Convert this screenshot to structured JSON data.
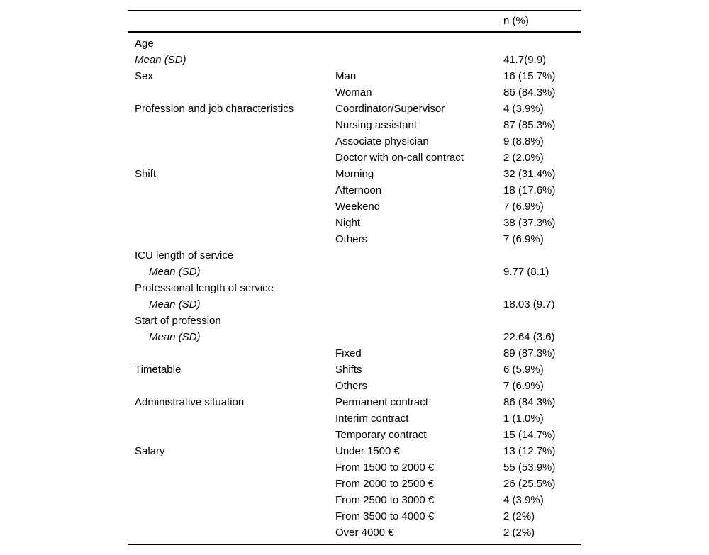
{
  "page": {
    "background": "#ffffff",
    "text_color": "#000000",
    "rule_color": "#000000"
  },
  "table": {
    "header": {
      "category_column": "",
      "subcategory_column": "",
      "value_column": "n (%)"
    },
    "rows": [
      {
        "category": "Age",
        "subcategory": "",
        "value": "",
        "italic": false,
        "indent": false
      },
      {
        "category": "Mean (SD)",
        "subcategory": "",
        "value": "41.7(9.9)",
        "italic": true,
        "indent": false
      },
      {
        "category": "Sex",
        "subcategory": "Man",
        "value": "16 (15.7%)",
        "italic": false,
        "indent": false
      },
      {
        "category": "",
        "subcategory": "Woman",
        "value": "86 (84.3%)",
        "italic": false,
        "indent": false
      },
      {
        "category": "Profession and job characteristics",
        "subcategory": "Coordinator/Supervisor",
        "value": "4 (3.9%)",
        "italic": false,
        "indent": false
      },
      {
        "category": "",
        "subcategory": "Nursing assistant",
        "value": "87 (85.3%)",
        "italic": false,
        "indent": false
      },
      {
        "category": "",
        "subcategory": "Associate physician",
        "value": "9 (8.8%)",
        "italic": false,
        "indent": false
      },
      {
        "category": "",
        "subcategory": "Doctor with on-call contract",
        "value": "2 (2.0%)",
        "italic": false,
        "indent": false
      },
      {
        "category": "Shift",
        "subcategory": "Morning",
        "value": "32 (31.4%)",
        "italic": false,
        "indent": false
      },
      {
        "category": "",
        "subcategory": "Afternoon",
        "value": "18 (17.6%)",
        "italic": false,
        "indent": false
      },
      {
        "category": "",
        "subcategory": "Weekend",
        "value": "7 (6.9%)",
        "italic": false,
        "indent": false
      },
      {
        "category": "",
        "subcategory": "Night",
        "value": "38 (37.3%)",
        "italic": false,
        "indent": false
      },
      {
        "category": "",
        "subcategory": "Others",
        "value": "7 (6.9%)",
        "italic": false,
        "indent": false
      },
      {
        "category": "ICU length of service",
        "subcategory": "",
        "value": "",
        "italic": false,
        "indent": false
      },
      {
        "category": "Mean (SD)",
        "subcategory": "",
        "value": "9.77 (8.1)",
        "italic": true,
        "indent": true
      },
      {
        "category": "Professional length of service",
        "subcategory": "",
        "value": "",
        "italic": false,
        "indent": false
      },
      {
        "category": "Mean (SD)",
        "subcategory": "",
        "value": "18.03 (9.7)",
        "italic": true,
        "indent": true
      },
      {
        "category": "Start of profession",
        "subcategory": "",
        "value": "",
        "italic": false,
        "indent": false
      },
      {
        "category": "Mean (SD)",
        "subcategory": "",
        "value": "22.64 (3.6)",
        "italic": true,
        "indent": true
      },
      {
        "category": "",
        "subcategory": "Fixed",
        "value": "89 (87.3%)",
        "italic": false,
        "indent": false
      },
      {
        "category": "Timetable",
        "subcategory": "Shifts",
        "value": "6 (5.9%)",
        "italic": false,
        "indent": false
      },
      {
        "category": "",
        "subcategory": "Others",
        "value": "7 (6.9%)",
        "italic": false,
        "indent": false
      },
      {
        "category": "Administrative situation",
        "subcategory": "Permanent contract",
        "value": "86 (84.3%)",
        "italic": false,
        "indent": false
      },
      {
        "category": "",
        "subcategory": "Interim contract",
        "value": "1 (1.0%)",
        "italic": false,
        "indent": false
      },
      {
        "category": "",
        "subcategory": "Temporary contract",
        "value": "15 (14.7%)",
        "italic": false,
        "indent": false
      },
      {
        "category": "Salary",
        "subcategory": "Under 1500 €",
        "value": "13 (12.7%)",
        "italic": false,
        "indent": false
      },
      {
        "category": "",
        "subcategory": "From 1500 to 2000 €",
        "value": "55 (53.9%)",
        "italic": false,
        "indent": false
      },
      {
        "category": "",
        "subcategory": "From 2000 to 2500 €",
        "value": "26 (25.5%)",
        "italic": false,
        "indent": false
      },
      {
        "category": "",
        "subcategory": "From 2500 to 3000 €",
        "value": "4 (3.9%)",
        "italic": false,
        "indent": false
      },
      {
        "category": "",
        "subcategory": "From 3500 to 4000 €",
        "value": "2 (2%)",
        "italic": false,
        "indent": false
      },
      {
        "category": "",
        "subcategory": "Over 4000 €",
        "value": "2 (2%)",
        "italic": false,
        "indent": false
      }
    ]
  }
}
